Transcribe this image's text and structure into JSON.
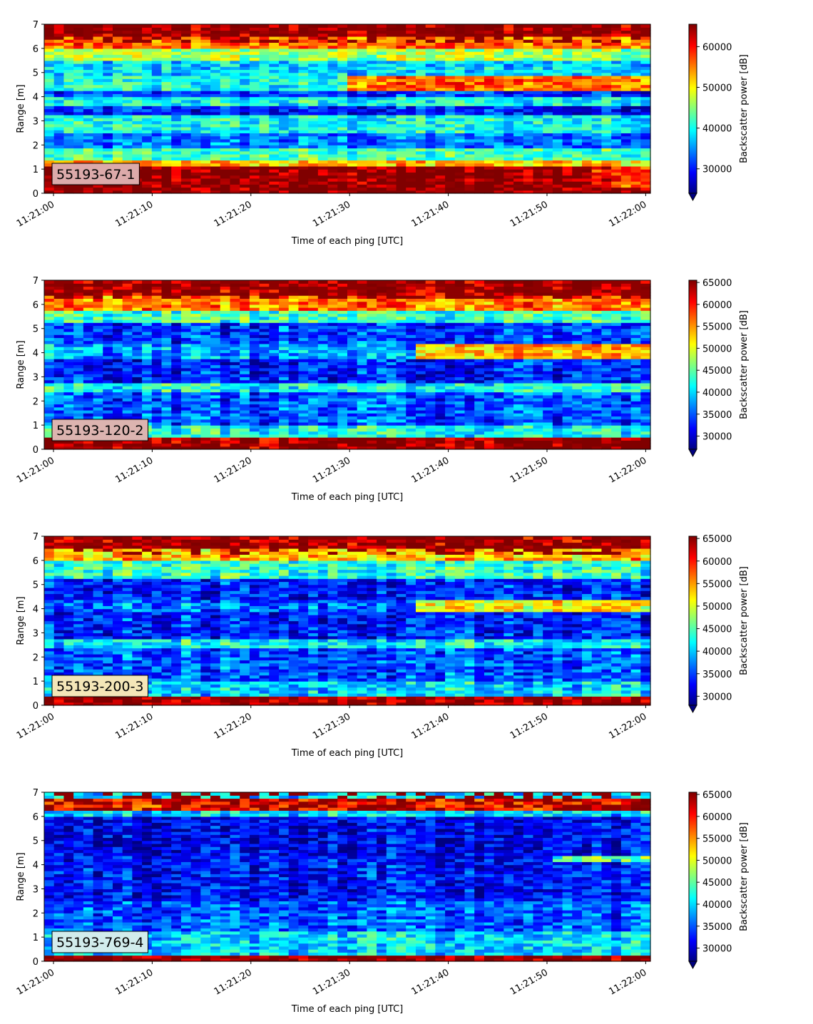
{
  "chart_data": [
    {
      "type": "heatmap",
      "label": "55193-67-1",
      "label_box_color": "#dcaaaa",
      "xlabel": "Time of each ping [UTC]",
      "ylabel": "Range [m]",
      "colorbar_label": "Backscatter power [dB]",
      "ylim": [
        0,
        7
      ],
      "y_ticks": [
        "0",
        "1",
        "2",
        "3",
        "4",
        "5",
        "6",
        "7"
      ],
      "x_ticks": [
        "11:21:00",
        "11:21:10",
        "11:21:20",
        "11:21:30",
        "11:21:40",
        "11:21:50",
        "11:22:00"
      ],
      "colorbar_range": [
        24000,
        65500
      ],
      "colorbar_ticks": [
        "30000",
        "40000",
        "50000",
        "60000"
      ],
      "colorbar_tick_values": [
        30000,
        40000,
        50000,
        60000
      ],
      "colormap": "jet",
      "extend": "min",
      "bands": [
        {
          "from": 0.0,
          "to": 0.25,
          "value": 65000
        },
        {
          "from": 0.25,
          "to": 1.1,
          "value": 65000,
          "late_from": 0.9,
          "late_value": 59000
        },
        {
          "from": 1.1,
          "to": 1.4,
          "value": 52000
        },
        {
          "from": 1.4,
          "to": 1.9,
          "value": 42000
        },
        {
          "from": 1.9,
          "to": 2.5,
          "value": 34000
        },
        {
          "from": 2.5,
          "to": 3.2,
          "value": 40000
        },
        {
          "from": 3.2,
          "to": 3.6,
          "value": 30000
        },
        {
          "from": 3.6,
          "to": 4.0,
          "value": 40000
        },
        {
          "from": 4.0,
          "to": 4.3,
          "value": 31000
        },
        {
          "from": 4.3,
          "to": 4.9,
          "value": 40000,
          "late_from": 0.5,
          "late_value": 56000
        },
        {
          "from": 4.9,
          "to": 5.5,
          "value": 38000
        },
        {
          "from": 5.5,
          "to": 6.0,
          "value": 46000
        },
        {
          "from": 6.0,
          "to": 6.5,
          "value": 56000
        },
        {
          "from": 6.5,
          "to": 7.0,
          "value": 64000
        }
      ]
    },
    {
      "type": "heatmap",
      "label": "55193-120-2",
      "label_box_color": "#dcb4b0",
      "xlabel": "Time of each ping [UTC]",
      "ylabel": "Range [m]",
      "colorbar_label": "Backscatter power [dB]",
      "ylim": [
        0,
        7
      ],
      "y_ticks": [
        "0",
        "1",
        "2",
        "3",
        "4",
        "5",
        "6",
        "7"
      ],
      "x_ticks": [
        "11:21:00",
        "11:21:10",
        "11:21:20",
        "11:21:30",
        "11:21:40",
        "11:21:50",
        "11:22:00"
      ],
      "colorbar_range": [
        27000,
        65500
      ],
      "colorbar_ticks": [
        "30000",
        "35000",
        "40000",
        "45000",
        "50000",
        "55000",
        "60000",
        "65000"
      ],
      "colorbar_tick_values": [
        30000,
        35000,
        40000,
        45000,
        50000,
        55000,
        60000,
        65000
      ],
      "colormap": "jet",
      "extend": "min",
      "bands": [
        {
          "from": 0.0,
          "to": 0.5,
          "value": 65000
        },
        {
          "from": 0.5,
          "to": 1.0,
          "value": 42000
        },
        {
          "from": 1.0,
          "to": 2.4,
          "value": 35000
        },
        {
          "from": 2.4,
          "to": 2.8,
          "value": 42000
        },
        {
          "from": 2.8,
          "to": 3.8,
          "value": 33000
        },
        {
          "from": 3.8,
          "to": 4.4,
          "value": 38000,
          "late_from": 0.6,
          "late_value": 54000
        },
        {
          "from": 4.4,
          "to": 5.2,
          "value": 34000
        },
        {
          "from": 5.2,
          "to": 5.8,
          "value": 44000
        },
        {
          "from": 5.8,
          "to": 6.4,
          "value": 56000
        },
        {
          "from": 6.4,
          "to": 7.0,
          "value": 64000
        }
      ]
    },
    {
      "type": "heatmap",
      "label": "55193-200-3",
      "label_box_color": "#f4e6b8",
      "xlabel": "Time of each ping [UTC]",
      "ylabel": "Range [m]",
      "colorbar_label": "Backscatter power [dB]",
      "ylim": [
        0,
        7
      ],
      "y_ticks": [
        "0",
        "1",
        "2",
        "3",
        "4",
        "5",
        "6",
        "7"
      ],
      "x_ticks": [
        "11:21:00",
        "11:21:10",
        "11:21:20",
        "11:21:30",
        "11:21:40",
        "11:21:50",
        "11:22:00"
      ],
      "colorbar_range": [
        28000,
        65500
      ],
      "colorbar_ticks": [
        "30000",
        "35000",
        "40000",
        "45000",
        "50000",
        "55000",
        "60000",
        "65000"
      ],
      "colorbar_tick_values": [
        30000,
        35000,
        40000,
        45000,
        50000,
        55000,
        60000,
        65000
      ],
      "colormap": "jet",
      "extend": "min",
      "bands": [
        {
          "from": 0.0,
          "to": 0.35,
          "value": 65000
        },
        {
          "from": 0.35,
          "to": 1.0,
          "value": 41000
        },
        {
          "from": 1.0,
          "to": 2.4,
          "value": 36000
        },
        {
          "from": 2.4,
          "to": 2.7,
          "value": 42000
        },
        {
          "from": 2.7,
          "to": 3.9,
          "value": 34000
        },
        {
          "from": 3.9,
          "to": 4.4,
          "value": 37000,
          "late_from": 0.6,
          "late_value": 52000
        },
        {
          "from": 4.4,
          "to": 5.3,
          "value": 34000
        },
        {
          "from": 5.3,
          "to": 6.0,
          "value": 44000
        },
        {
          "from": 6.0,
          "to": 6.5,
          "value": 54000
        },
        {
          "from": 6.5,
          "to": 7.0,
          "value": 64000
        }
      ]
    },
    {
      "type": "heatmap",
      "label": "55193-769-4",
      "label_box_color": "#d2ecec",
      "xlabel": "Time of each ping [UTC]",
      "ylabel": "Range [m]",
      "colorbar_label": "Backscatter power [dB]",
      "ylim": [
        0,
        7
      ],
      "y_ticks": [
        "0",
        "1",
        "2",
        "3",
        "4",
        "5",
        "6",
        "7"
      ],
      "x_ticks": [
        "11:21:00",
        "11:21:10",
        "11:21:20",
        "11:21:30",
        "11:21:40",
        "11:21:50",
        "11:22:00"
      ],
      "colorbar_range": [
        27000,
        65500
      ],
      "colorbar_ticks": [
        "30000",
        "35000",
        "40000",
        "45000",
        "50000",
        "55000",
        "60000",
        "65000"
      ],
      "colorbar_tick_values": [
        30000,
        35000,
        40000,
        45000,
        50000,
        55000,
        60000,
        65000
      ],
      "colormap": "jet",
      "extend": "min",
      "bands": [
        {
          "from": 0.0,
          "to": 0.3,
          "value": 65000
        },
        {
          "from": 0.3,
          "to": 1.2,
          "value": 40000
        },
        {
          "from": 1.2,
          "to": 2.5,
          "value": 35000
        },
        {
          "from": 2.5,
          "to": 4.1,
          "value": 32000
        },
        {
          "from": 4.1,
          "to": 4.4,
          "value": 32000,
          "late_from": 0.83,
          "late_value": 44000
        },
        {
          "from": 4.4,
          "to": 6.0,
          "value": 31000
        },
        {
          "from": 6.0,
          "to": 6.3,
          "value": 40000
        },
        {
          "from": 6.3,
          "to": 6.7,
          "value": 60000
        },
        {
          "from": 6.7,
          "to": 7.0,
          "value": 40000
        }
      ]
    }
  ]
}
